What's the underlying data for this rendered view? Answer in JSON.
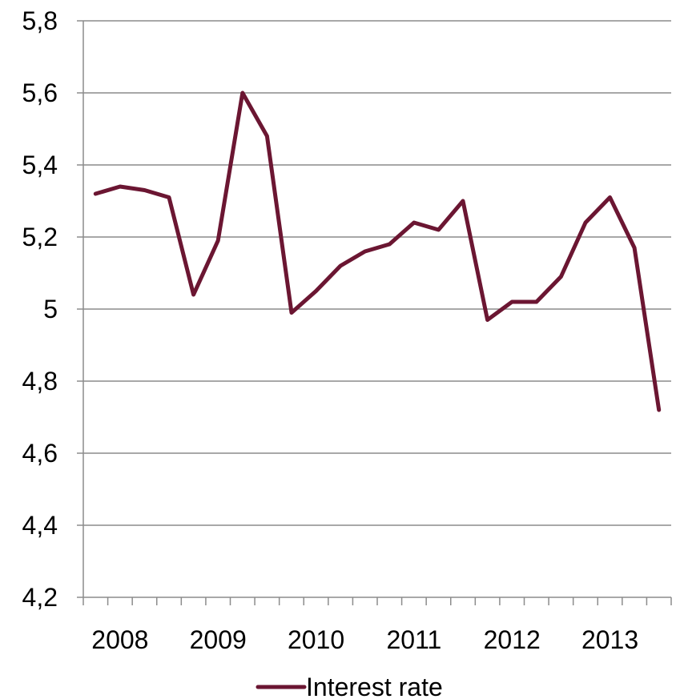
{
  "chart_data": {
    "type": "line",
    "title": "",
    "xlabel": "",
    "ylabel": "",
    "ylim": [
      4.2,
      5.8
    ],
    "yticks": [
      "4,2",
      "4,4",
      "4,6",
      "4,8",
      "5",
      "5,2",
      "5,4",
      "5,6",
      "5,8"
    ],
    "ytick_values": [
      4.2,
      4.4,
      4.6,
      4.8,
      5.0,
      5.2,
      5.4,
      5.6,
      5.8
    ],
    "x_categories": [
      "2008 Q1",
      "2008 Q2",
      "2008 Q3",
      "2008 Q4",
      "2009 Q1",
      "2009 Q2",
      "2009 Q3",
      "2009 Q4",
      "2010 Q1",
      "2010 Q2",
      "2010 Q3",
      "2010 Q4",
      "2011 Q1",
      "2011 Q2",
      "2011 Q3",
      "2011 Q4",
      "2012 Q1",
      "2012 Q2",
      "2012 Q3",
      "2012 Q4",
      "2013 Q1",
      "2013 Q2",
      "2013 Q3",
      "2013 Q4"
    ],
    "year_labels": [
      "2008",
      "2009",
      "2010",
      "2011",
      "2012",
      "2013"
    ],
    "grid": true,
    "legend_position": "bottom",
    "series": [
      {
        "name": "Interest rate",
        "color": "#6b1632",
        "values": [
          5.32,
          5.34,
          5.33,
          5.31,
          5.04,
          5.19,
          5.6,
          5.48,
          4.99,
          5.05,
          5.12,
          5.16,
          5.18,
          5.24,
          5.22,
          5.3,
          4.97,
          5.02,
          5.02,
          5.09,
          5.24,
          5.31,
          5.17,
          4.72
        ]
      }
    ]
  }
}
